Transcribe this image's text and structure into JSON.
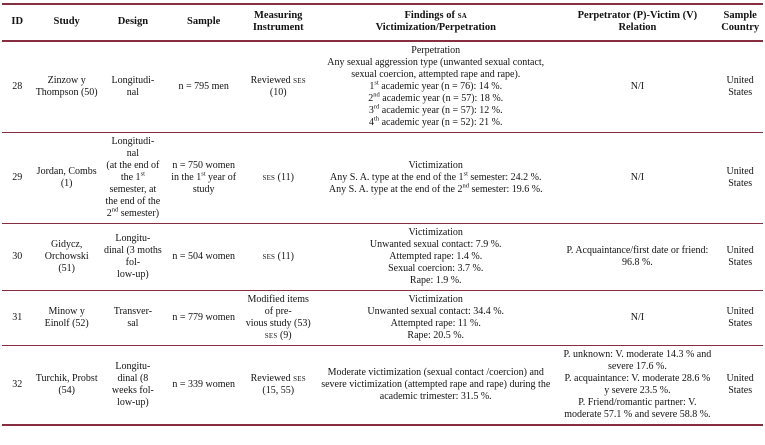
{
  "theme": {
    "rule_color": "#862d40",
    "text_color": "#131313",
    "background": "#ffffff"
  },
  "table": {
    "columns": [
      {
        "key": "id",
        "label": "ID"
      },
      {
        "key": "study",
        "label": "Study"
      },
      {
        "key": "design",
        "label": "Design"
      },
      {
        "key": "sample",
        "label": "Sample"
      },
      {
        "key": "instrument",
        "label": "Measuring<br>Instrument"
      },
      {
        "key": "findings",
        "label": "Findings of <span class='sc'>sa</span><br>Victimization/Perpetration"
      },
      {
        "key": "relation",
        "label": "Perpetrator (P)-Victim (V) Relation"
      },
      {
        "key": "country",
        "label": "Sample<br>Country"
      }
    ],
    "rows": [
      {
        "id": "28",
        "study": "Zinzow y Thompson (50)",
        "design": "Longitudi-<br>nal",
        "sample": "n = 795 men",
        "instrument": "Reviewed <span class='sc'>ses</span><br>(10)",
        "findings": "Perpetration<br>Any sexual aggression type (unwanted sexual contact, sexual coercion, attempted rape and rape).<br>1<sup>st</sup> academic year (n = 76): 14 %.<br>2<sup>nd</sup> academic year (n = 57): 18 %.<br>3<sup>rd</sup> academic year (n = 57): 12 %.<br>4<sup>th</sup> academic year (n = 52): 21 %.",
        "relation": "N/I",
        "country": "United States"
      },
      {
        "id": "29",
        "study": "Jordan, Combs (1)",
        "design": "Longitudi-<br>nal<br>(at the end of the 1<sup>st</sup> semester, at the end of the 2<sup>nd</sup> semester)",
        "sample": "n = 750 women in the 1<sup>st</sup> year of study",
        "instrument": "<span class='sc'>ses</span> (11)",
        "findings": "Victimization<br>Any S. A. type at the end of the 1<sup>st</sup> semester: 24.2 %.<br>Any S. A. type at the end of the 2<sup>nd</sup> semester: 19.6 %.",
        "relation": "N/I",
        "country": "United States"
      },
      {
        "id": "30",
        "study": "Gidycz, Orchowski (51)",
        "design": "Longitu-<br>dinal (3 moths fol-<br>low-up)",
        "sample": "n = 504 women",
        "instrument": "<span class='sc'>ses</span> (11)",
        "findings": "Victimization<br>Unwanted sexual contact: 7.9 %.<br>Attempted rape: 1.4 %.<br>Sexual coercion: 3.7 %.<br>Rape: 1.9 %.",
        "relation": "P. Acquaintance/first date or friend: 96.8 %.",
        "country": "United States"
      },
      {
        "id": "31",
        "study": "Minow y Einolf (52)",
        "design": "Transver-<br>sal",
        "sample": "n = 779 women",
        "instrument": "Modified items of pre-<br>vious study (53)<br><span class='sc'>ses</span> (9)",
        "findings": "Victimization<br>Unwanted sexual contact: 34.4 %.<br>Attempted rape: 11 %.<br>Rape: 20.5 %.",
        "relation": "N/I",
        "country": "United States"
      },
      {
        "id": "32",
        "study": "Turchik, Probst (54)",
        "design": "Longitu-<br>dinal (8 weeks fol-<br>low-up)",
        "sample": "n = 339 women",
        "instrument": "Reviewed <span class='sc'>ses</span><br>(15, 55)",
        "findings": "Moderate victimization (sexual contact /coercion) and severe victimization (attempted rape and rape) during the academic trimester: 31.5 %.",
        "relation": "P. unknown: V. moderate 14.3 % and severe 17.6 %.<br>P. acquaintance: V. moderate 28.6 % y severe 23.5 %.<br>P. Friend/romantic partner: V. moderate 57.1 % and severe 58.8 %.",
        "country": "United States"
      }
    ]
  }
}
